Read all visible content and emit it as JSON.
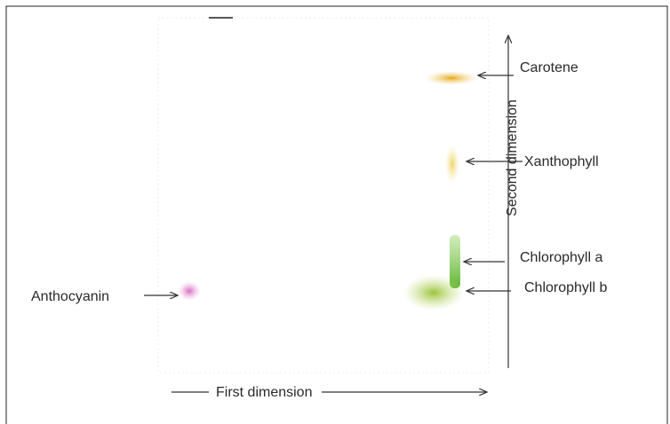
{
  "labels": {
    "carotene": "Carotene",
    "xanthophyll": "Xanthophyll",
    "chlorophyll_a": "Chlorophyll a",
    "chlorophyll_b": "Chlorophyll b",
    "anthocyanin": "Anthocyanin"
  },
  "axes": {
    "first": "First dimension",
    "second": "Second dimension"
  }
}
